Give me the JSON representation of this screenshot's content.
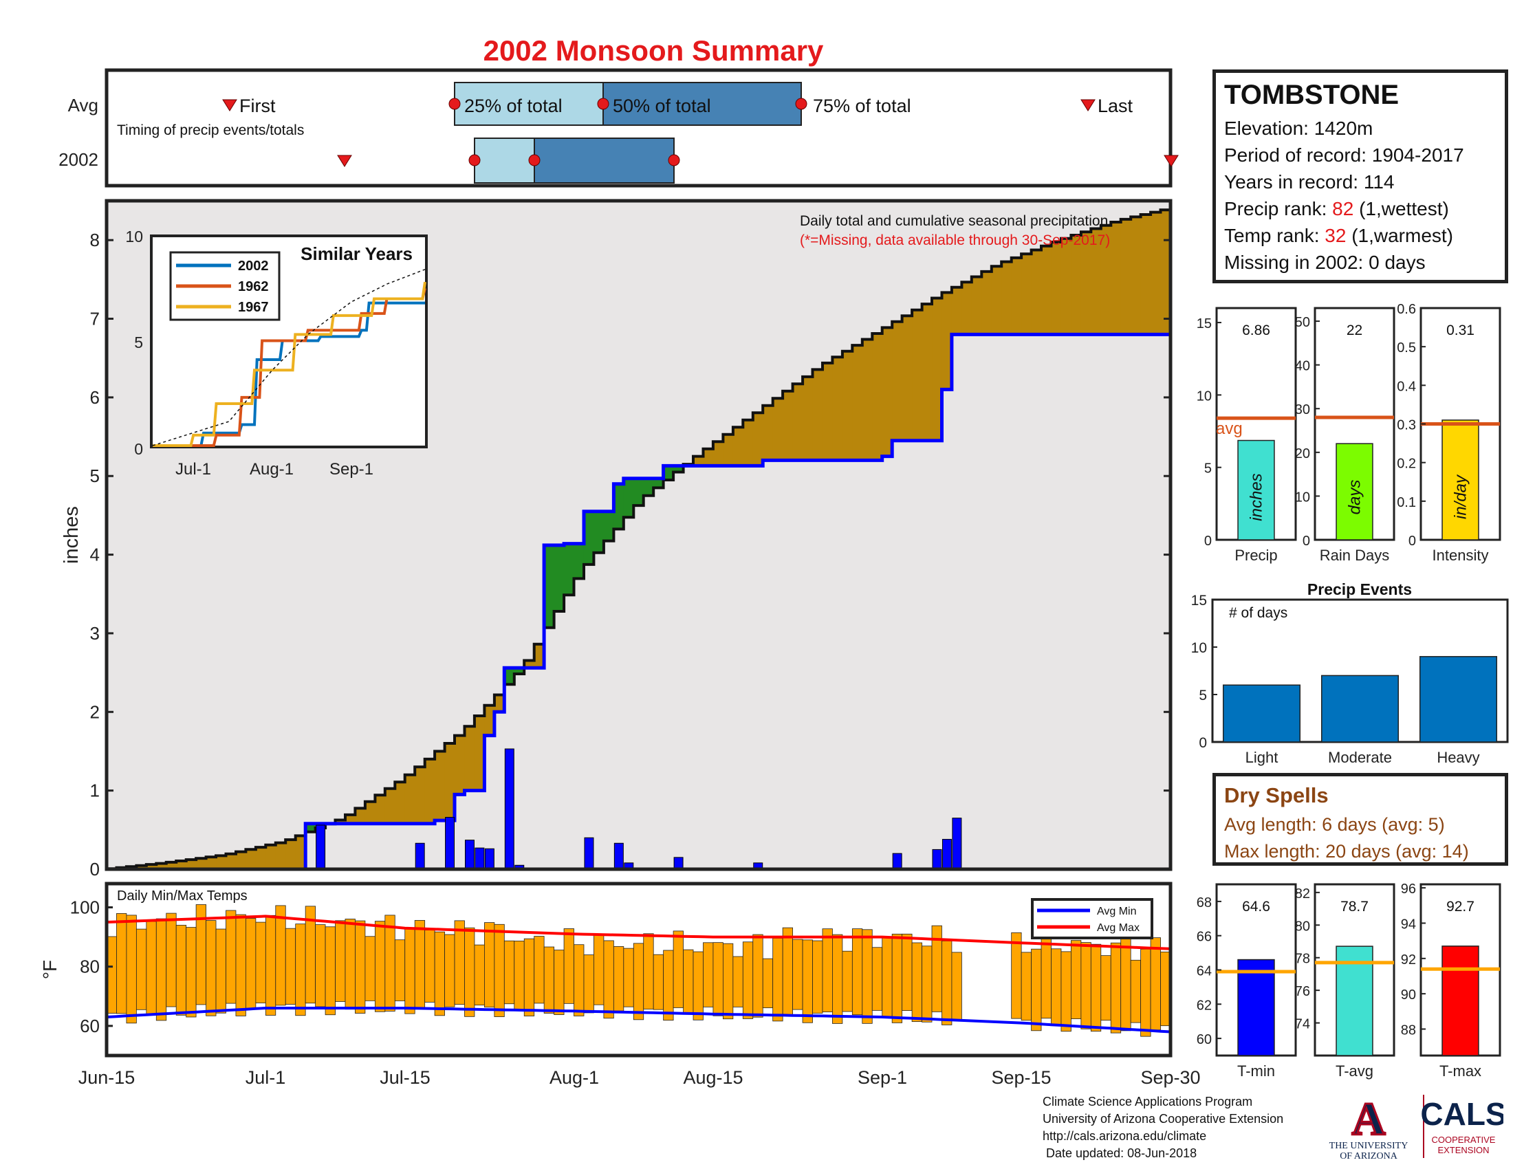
{
  "title": "2002 Monsoon Summary",
  "timing": {
    "row_labels": [
      "Avg",
      "2002"
    ],
    "subtitle": "Timing of precip events/totals",
    "avg_first_label": "First",
    "avg_last_label": "Last",
    "avg_pct_labels": [
      "25% of total",
      "50% of total",
      "75% of total"
    ],
    "colors": {
      "light_box": "#add8e6",
      "dark_box": "#4682b4",
      "marker": "#e41a1c"
    }
  },
  "station": {
    "name": "TOMBSTONE",
    "elevation_label": "Elevation: 1420m",
    "period_label": "Period of record: 1904-2017",
    "years_label": "Years in record: 114",
    "precip_rank_prefix": "Precip rank: ",
    "precip_rank_value": "82",
    "precip_rank_suffix": " (1,wettest)",
    "temp_rank_prefix": "Temp rank: ",
    "temp_rank_value": "32",
    "temp_rank_suffix": " (1,warmest)",
    "missing_label": "Missing in 2002: 0 days"
  },
  "main_chart": {
    "ylabel": "inches",
    "note_line1": "Daily total and cumulative seasonal precipitation",
    "note_line2": "(*=Missing, data available through 30-Sep-2017)",
    "x_tick_labels": [
      "Jun-15",
      "Jul-1",
      "Jul-15",
      "Aug-1",
      "Aug-15",
      "Sep-1",
      "Sep-15",
      "Sep-30"
    ],
    "y_ticks": [
      0,
      1,
      2,
      3,
      4,
      5,
      6,
      7,
      8
    ]
  },
  "inset": {
    "title": "Similar Years",
    "legend": [
      "2002",
      "1962",
      "1967"
    ],
    "y_ticks": [
      "0",
      "5",
      "10"
    ],
    "x_ticks": [
      "Jul-1",
      "Aug-1",
      "Sep-1"
    ]
  },
  "stat_bars": {
    "avg_label": "avg",
    "panels": [
      {
        "xlabel": "Precip",
        "value_label": "6.86",
        "unit": "inches",
        "ticks": [
          "0",
          "5",
          "10",
          "15"
        ]
      },
      {
        "xlabel": "Rain Days",
        "value_label": "22",
        "unit": "days",
        "ticks": [
          "0",
          "10",
          "20",
          "30",
          "40",
          "50"
        ]
      },
      {
        "xlabel": "Intensity",
        "value_label": "0.31",
        "unit": "in/day",
        "ticks": [
          "0",
          "0.1",
          "0.2",
          "0.3",
          "0.4",
          "0.5",
          "0.6"
        ]
      }
    ]
  },
  "precip_events": {
    "title": "Precip Events",
    "ylabel": "# of days",
    "ticks": [
      "0",
      "5",
      "10",
      "15"
    ]
  },
  "dry_spells": {
    "title": "Dry Spells",
    "avg_line": "Avg length: 6 days (avg: 5)",
    "max_line": "Max length: 20 days (avg: 14)"
  },
  "temp_chart": {
    "title": "Daily Min/Max Temps",
    "ylabel": "°F",
    "y_ticks": [
      60,
      80,
      100
    ],
    "legend": [
      "Avg Min",
      "Avg Max"
    ]
  },
  "temp_bars": {
    "panels": [
      {
        "xlabel": "T-min",
        "value_label": "64.6",
        "ticks": [
          "60",
          "62",
          "64",
          "66",
          "68"
        ]
      },
      {
        "xlabel": "T-avg",
        "value_label": "78.7",
        "ticks": [
          "74",
          "76",
          "78",
          "80",
          "82"
        ]
      },
      {
        "xlabel": "T-max",
        "value_label": "92.7",
        "ticks": [
          "88",
          "90",
          "92",
          "94",
          "96"
        ]
      }
    ]
  },
  "footer": {
    "line1": "Climate Science Applications Program",
    "line2": "University of Arizona Cooperative Extension",
    "line3": "http://cals.arizona.edu/climate",
    "line4": " Date updated: 08-Jun-2018"
  },
  "logos": {
    "ua_letter": "A",
    "ua_line1": "THE UNIVERSITY",
    "ua_line2": "OF ARIZONA",
    "cals_text": "CALS",
    "cals_line1": "COOPERATIVE",
    "cals_line2": "EXTENSION"
  },
  "chart_data": [
    {
      "type": "area",
      "title": "Daily total and cumulative seasonal precipitation",
      "ylabel": "inches",
      "xlim": [
        "Jun-15",
        "Sep-30"
      ],
      "ylim": [
        0,
        8.5
      ],
      "colors": {
        "avg_cum": "#b8860b",
        "above_avg": "#228b22",
        "year_line": "#0000ff",
        "daily": "#0000ff",
        "fill": "#e8e6e6"
      },
      "series": [
        {
          "name": "cumulative 2002",
          "x": [
            "Jun-15",
            "Jul-5",
            "Jul-18",
            "Jul-20",
            "Jul-21",
            "Jul-22",
            "Jul-23",
            "Jul-24",
            "Jul-25",
            "Jul-28",
            "Jul-29",
            "Jul-31",
            "Aug-2",
            "Aug-5",
            "Aug-6",
            "Aug-7",
            "Aug-10",
            "Aug-20",
            "Sep-1",
            "Sep-2",
            "Sep-5",
            "Sep-7",
            "Sep-8",
            "Sep-30"
          ],
          "values": [
            0,
            0.58,
            0.62,
            0.95,
            1.0,
            1.0,
            1.7,
            2.0,
            2.56,
            2.56,
            4.12,
            4.14,
            4.55,
            4.9,
            4.97,
            4.97,
            5.13,
            5.2,
            5.25,
            5.45,
            5.45,
            6.1,
            6.8,
            6.8
          ]
        },
        {
          "name": "average cumulative",
          "x": [
            "Jun-15",
            "Jun-21",
            "Jun-27",
            "Jul-3",
            "Jul-9",
            "Jul-15",
            "Jul-21",
            "Jul-27",
            "Aug-2",
            "Aug-8",
            "Aug-14",
            "Aug-20",
            "Aug-26",
            "Sep-1",
            "Sep-7",
            "Sep-13",
            "Sep-19",
            "Sep-25",
            "Sep-30"
          ],
          "values": [
            0,
            0.08,
            0.18,
            0.35,
            0.65,
            1.15,
            1.75,
            2.55,
            3.8,
            4.7,
            5.3,
            5.85,
            6.4,
            6.85,
            7.3,
            7.7,
            8.0,
            8.25,
            8.4
          ]
        },
        {
          "name": "daily 2002",
          "x": [
            "Jul-6",
            "Jul-16",
            "Jul-19",
            "Jul-21",
            "Jul-22",
            "Jul-23",
            "Jul-25",
            "Jul-26",
            "Aug-2",
            "Aug-5",
            "Aug-6",
            "Aug-11",
            "Aug-19",
            "Sep-2",
            "Sep-6",
            "Sep-7",
            "Sep-8"
          ],
          "values": [
            0.56,
            0.33,
            0.66,
            0.37,
            0.27,
            0.26,
            1.53,
            0.05,
            0.4,
            0.33,
            0.08,
            0.15,
            0.08,
            0.2,
            0.25,
            0.38,
            0.65
          ]
        }
      ]
    },
    {
      "type": "line",
      "title": "Similar Years",
      "ylim": [
        0,
        10
      ],
      "series": [
        {
          "name": "2002",
          "x": [
            "Jun-15",
            "Jul-5",
            "Jul-20",
            "Jul-26",
            "Aug-5",
            "Aug-20",
            "Sep-5",
            "Sep-8",
            "Sep-30"
          ],
          "values": [
            0,
            0.6,
            1.0,
            4.1,
            5.0,
            5.2,
            5.5,
            6.8,
            6.8
          ]
        },
        {
          "name": "1962",
          "x": [
            "Jun-15",
            "Jul-10",
            "Jul-20",
            "Jul-28",
            "Aug-15",
            "Sep-5",
            "Sep-15",
            "Sep-30"
          ],
          "values": [
            0,
            0.5,
            2.3,
            5.0,
            5.5,
            6.3,
            7.0,
            7.5
          ]
        },
        {
          "name": "1967",
          "x": [
            "Jun-15",
            "Jul-1",
            "Jul-10",
            "Jul-25",
            "Aug-10",
            "Aug-25",
            "Sep-10",
            "Sep-30"
          ],
          "values": [
            0,
            0.5,
            2.0,
            3.6,
            5.3,
            6.2,
            7.0,
            7.8
          ]
        },
        {
          "name": "avg",
          "x": [
            "Jun-15",
            "Jul-15",
            "Aug-1",
            "Aug-15",
            "Sep-1",
            "Sep-15",
            "Sep-30"
          ],
          "values": [
            0,
            1.15,
            3.6,
            5.3,
            6.85,
            7.7,
            8.4
          ]
        }
      ]
    },
    {
      "type": "bar",
      "categories": [
        "Precip"
      ],
      "values": [
        6.86
      ],
      "avg": 8.4,
      "ylim": [
        0,
        16
      ]
    },
    {
      "type": "bar",
      "categories": [
        "Rain Days"
      ],
      "values": [
        22
      ],
      "avg": 28,
      "ylim": [
        0,
        53
      ]
    },
    {
      "type": "bar",
      "categories": [
        "Intensity"
      ],
      "values": [
        0.31
      ],
      "avg": 0.3,
      "ylim": [
        0,
        0.6
      ]
    },
    {
      "type": "bar",
      "title": "Precip Events",
      "categories": [
        "Light",
        "Moderate",
        "Heavy"
      ],
      "values": [
        6,
        7,
        9
      ],
      "ylim": [
        0,
        15
      ]
    },
    {
      "type": "bar",
      "title": "Daily Min/Max Temps",
      "ylabel": "°F",
      "ylim": [
        50,
        108
      ],
      "series": [
        {
          "name": "Avg Min",
          "x": [
            "Jun-15",
            "Jul-1",
            "Jul-15",
            "Aug-1",
            "Aug-15",
            "Sep-1",
            "Sep-15",
            "Sep-30"
          ],
          "values": [
            63,
            66,
            66,
            65,
            64,
            63,
            61,
            58
          ]
        },
        {
          "name": "Avg Max",
          "x": [
            "Jun-15",
            "Jul-1",
            "Jul-15",
            "Aug-1",
            "Aug-15",
            "Sep-1",
            "Sep-15",
            "Sep-30"
          ],
          "values": [
            95,
            97,
            93,
            91,
            90,
            90,
            88,
            86
          ]
        }
      ]
    },
    {
      "type": "bar",
      "categories": [
        "T-min"
      ],
      "values": [
        64.6
      ],
      "avg": 63.9,
      "ylim": [
        59,
        69
      ]
    },
    {
      "type": "bar",
      "categories": [
        "T-avg"
      ],
      "values": [
        78.7
      ],
      "avg": 77.7,
      "ylim": [
        72,
        82.5
      ]
    },
    {
      "type": "bar",
      "categories": [
        "T-max"
      ],
      "values": [
        92.7
      ],
      "avg": 91.4,
      "ylim": [
        86.5,
        96.2
      ]
    }
  ]
}
